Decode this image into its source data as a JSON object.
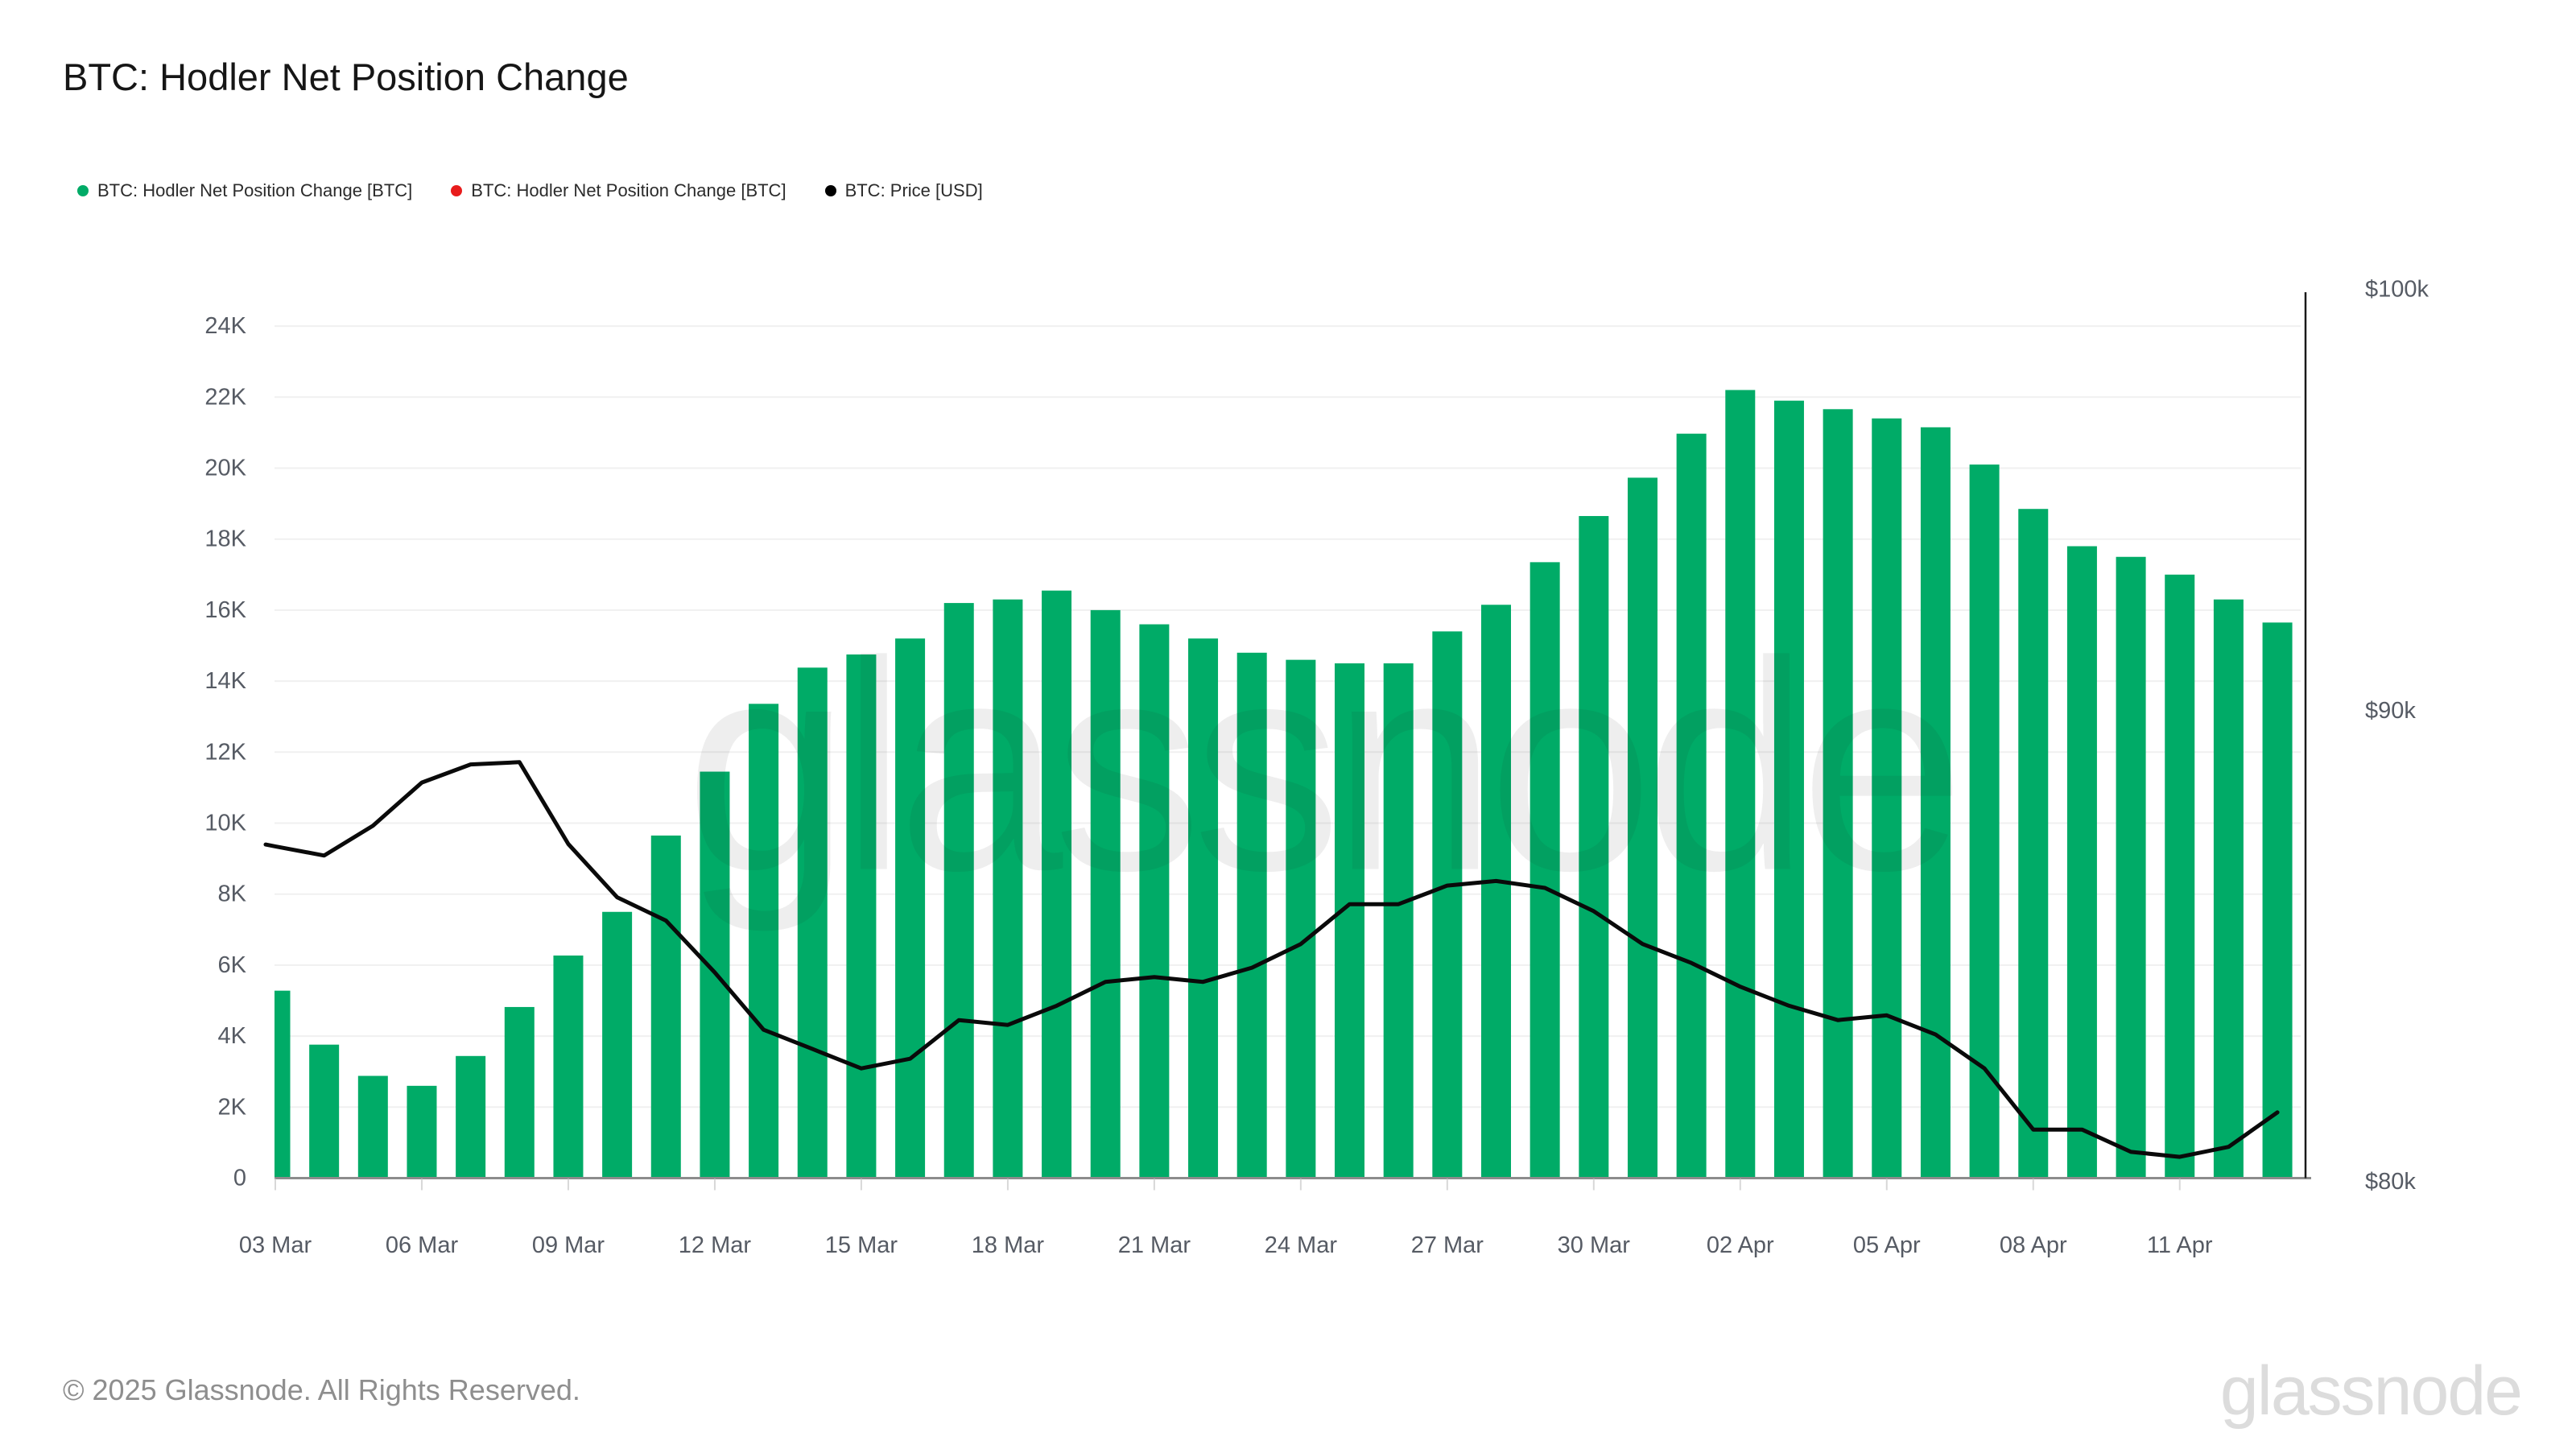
{
  "title": "BTC: Hodler Net Position Change",
  "legend": [
    {
      "label": "BTC: Hodler Net Position Change [BTC]",
      "color": "#00ab67"
    },
    {
      "label": "BTC: Hodler Net Position Change [BTC]",
      "color": "#e81c1c"
    },
    {
      "label": "BTC: Price [USD]",
      "color": "#000000"
    }
  ],
  "footer": "© 2025 Glassnode. All Rights Reserved.",
  "watermark_center": "glassnode",
  "watermark_corner": "glassnode",
  "chart_data": {
    "type": "bar",
    "categories": [
      "03 Mar",
      "04 Mar",
      "05 Mar",
      "06 Mar",
      "07 Mar",
      "08 Mar",
      "09 Mar",
      "10 Mar",
      "11 Mar",
      "12 Mar",
      "13 Mar",
      "14 Mar",
      "15 Mar",
      "16 Mar",
      "17 Mar",
      "18 Mar",
      "19 Mar",
      "20 Mar",
      "21 Mar",
      "22 Mar",
      "23 Mar",
      "24 Mar",
      "25 Mar",
      "26 Mar",
      "27 Mar",
      "28 Mar",
      "29 Mar",
      "30 Mar",
      "31 Mar",
      "01 Apr",
      "02 Apr",
      "03 Apr",
      "04 Apr",
      "05 Apr",
      "06 Apr",
      "07 Apr",
      "08 Apr",
      "09 Apr",
      "10 Apr",
      "11 Apr",
      "12 Apr",
      "13 Apr"
    ],
    "series": [
      {
        "name": "BTC: Hodler Net Position Change [BTC]",
        "type": "bar",
        "axis": "left",
        "color": "#00ab67",
        "values": [
          5280,
          3760,
          2880,
          2600,
          3440,
          4820,
          6270,
          7500,
          9650,
          11450,
          13360,
          14380,
          14750,
          15200,
          16200,
          16300,
          16550,
          16000,
          15600,
          15200,
          14800,
          14600,
          14500,
          14500,
          15400,
          16150,
          17350,
          18650,
          19730,
          20970,
          22200,
          21900,
          21660,
          21400,
          21150,
          20100,
          18850,
          17800,
          17500,
          17000,
          16300,
          15650
        ]
      },
      {
        "name": "BTC: Price [USD]",
        "type": "line",
        "axis": "right",
        "color": "#0a0a0a",
        "values": [
          87000,
          86800,
          87450,
          88400,
          88800,
          88850,
          87050,
          85900,
          85400,
          84300,
          83100,
          82700,
          82300,
          82500,
          83300,
          83200,
          83600,
          84100,
          84200,
          84100,
          84400,
          84900,
          85750,
          85750,
          86150,
          86250,
          86100,
          85600,
          84900,
          84500,
          84000,
          83600,
          83300,
          83400,
          83000,
          82300,
          81050,
          81050,
          80600,
          80500,
          80700,
          81400
        ]
      }
    ],
    "left_axis": {
      "tick_labels": [
        "0",
        "2K",
        "4K",
        "6K",
        "8K",
        "10K",
        "12K",
        "14K",
        "16K",
        "18K",
        "20K",
        "22K",
        "24K"
      ],
      "min": 0,
      "max": 24000,
      "tick_step": 2000,
      "scale": "linear"
    },
    "right_axis": {
      "tick_labels": [
        "$80k",
        "$90k",
        "$100k"
      ],
      "tick_values": [
        80000,
        90000,
        100000
      ],
      "min": 80000,
      "max": 100000,
      "scale": "log"
    },
    "x_tick_every_days": 3,
    "grid": "horizontal",
    "legend_position": "top-left"
  }
}
